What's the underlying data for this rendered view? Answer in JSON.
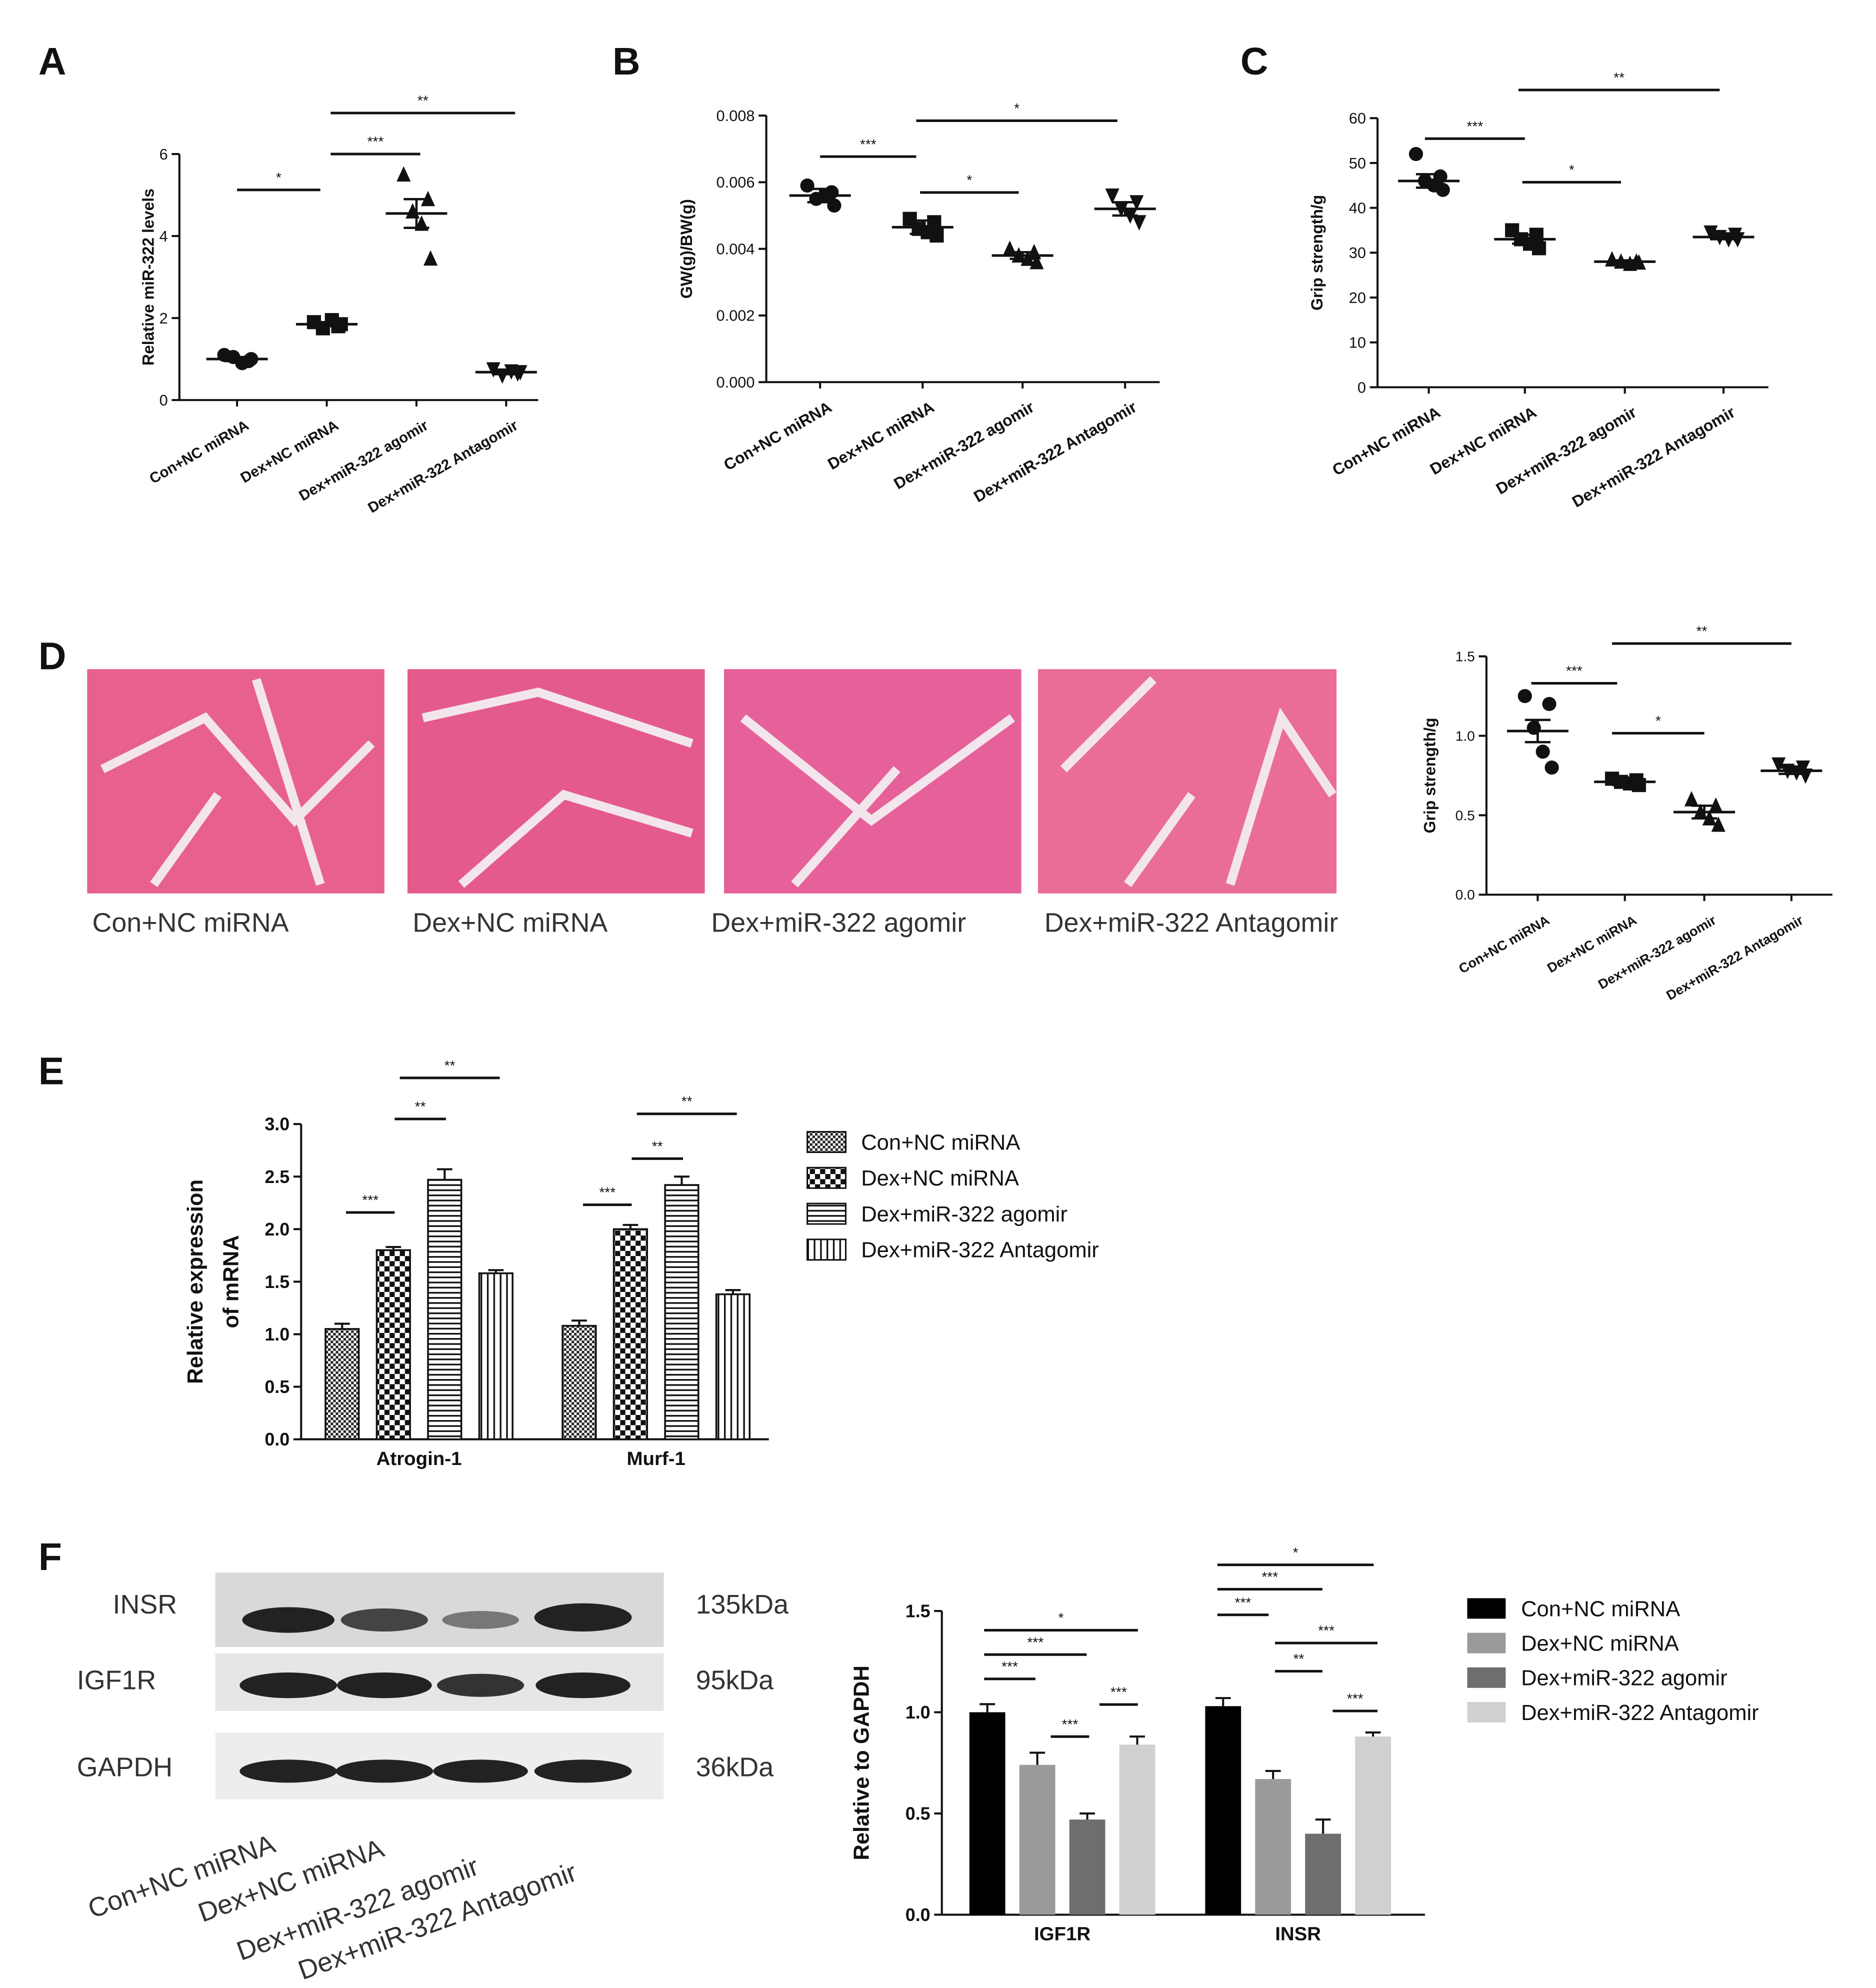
{
  "panel_labels": [
    "A",
    "B",
    "C",
    "D",
    "E",
    "F"
  ],
  "histology": {
    "labels": [
      "Con+NC miRNA",
      "Dex+NC miRNA",
      "Dex+miR-322 agomir",
      "Dex+miR-322 Antagomir"
    ]
  },
  "western_blot": {
    "bands": [
      {
        "label": "INSR",
        "size": "135kDa"
      },
      {
        "label": "IGF1R",
        "size": "95kDa"
      },
      {
        "label": "GAPDH",
        "size": "36kDa"
      }
    ],
    "lanes": [
      "Con+NC miRNA",
      "Dex+NC miRNA",
      "Dex+miR-322 agomir",
      "Dex+miR-322 Antagomir"
    ]
  },
  "chart_data": [
    {
      "type": "dot",
      "ylabel": "Relative miR-322 levels",
      "categories": [
        "Con+NC miRNA",
        "Dex+NC miRNA",
        "Dex+miR-322 agomir",
        "Dex+miR-322 Antagomir"
      ],
      "values": [
        1.0,
        1.85,
        4.55,
        0.68
      ],
      "errors": [
        0.05,
        0.05,
        0.35,
        0.05
      ],
      "points": [
        [
          1.1,
          0.95,
          1.05,
          0.9,
          1.0
        ],
        [
          1.9,
          1.8,
          1.75,
          1.95,
          1.85
        ],
        [
          5.5,
          4.9,
          4.6,
          4.3,
          3.45
        ],
        [
          0.75,
          0.65,
          0.6,
          0.7,
          0.68
        ]
      ],
      "ylim": [
        0,
        6
      ],
      "yticks": [
        0,
        2,
        4,
        6
      ],
      "annotations": [
        "*",
        "***",
        "**"
      ],
      "color": "#111111"
    },
    {
      "type": "dot",
      "ylabel": "GW(g)/BW(g)",
      "categories": [
        "Con+NC miRNA",
        "Dex+NC miRNA",
        "Dex+miR-322 agomir",
        "Dex+miR-322 Antagomir"
      ],
      "values": [
        0.0056,
        0.00465,
        0.0038,
        0.0052
      ],
      "errors": [
        0.0002,
        0.0002,
        0.0001,
        0.0002
      ],
      "points": [
        [
          0.0059,
          0.0057,
          0.0055,
          0.0056,
          0.0053
        ],
        [
          0.0049,
          0.0048,
          0.0046,
          0.0045,
          0.0044
        ],
        [
          0.004,
          0.0039,
          0.0038,
          0.0037,
          0.0036
        ],
        [
          0.0056,
          0.0054,
          0.0052,
          0.005,
          0.0048
        ]
      ],
      "ylim": [
        0,
        0.008
      ],
      "yticks": [
        {
          "value": 0,
          "label": "0.000"
        },
        {
          "value": 0.002,
          "label": "0.002"
        },
        {
          "value": 0.004,
          "label": "0.004"
        },
        {
          "value": 0.006,
          "label": "0.006"
        },
        {
          "value": 0.008,
          "label": "0.008"
        }
      ],
      "annotations": [
        "***",
        "*",
        "*"
      ],
      "color": "#111111"
    },
    {
      "type": "dot",
      "ylabel": "Grip strength/g",
      "categories": [
        "Con+NC miRNA",
        "Dex+NC miRNA",
        "Dex+miR-322 agomir",
        "Dex+miR-322 Antagomir"
      ],
      "values": [
        46,
        33,
        28,
        33.5
      ],
      "errors": [
        1.5,
        1,
        0.3,
        0.5
      ],
      "points": [
        [
          52,
          47,
          46,
          45,
          44
        ],
        [
          35,
          34,
          33,
          32,
          31
        ],
        [
          28.5,
          28,
          28,
          27.5,
          27.8
        ],
        [
          34.5,
          34,
          33.5,
          33,
          33
        ]
      ],
      "ylim": [
        0,
        60
      ],
      "yticks": [
        0,
        10,
        20,
        30,
        40,
        50,
        60
      ],
      "annotations": [
        "***",
        "*",
        "**"
      ],
      "color": "#111111"
    },
    {
      "type": "dot",
      "ylabel": "Grip strength/g",
      "categories": [
        "Con+NC miRNA",
        "Dex+NC miRNA",
        "Dex+miR-322 agomir",
        "Dex+miR-322 Antagomir"
      ],
      "values": [
        1.03,
        0.71,
        0.52,
        0.78
      ],
      "errors": [
        0.07,
        0.02,
        0.04,
        0.02
      ],
      "points": [
        [
          1.25,
          1.2,
          1.05,
          0.9,
          0.8
        ],
        [
          0.73,
          0.72,
          0.71,
          0.7,
          0.69
        ],
        [
          0.6,
          0.56,
          0.52,
          0.48,
          0.44
        ],
        [
          0.82,
          0.8,
          0.78,
          0.77,
          0.75
        ]
      ],
      "ylim": [
        0,
        1.5
      ],
      "yticks": [
        {
          "value": 0,
          "label": "0.0"
        },
        {
          "value": 0.5,
          "label": "0.5"
        },
        {
          "value": 1,
          "label": "1.0"
        },
        {
          "value": 1.5,
          "label": "1.5"
        }
      ],
      "annotations": [
        "***",
        "*",
        "**"
      ],
      "color": "#111111"
    },
    {
      "type": "bar",
      "ylabel": [
        "Relative expression",
        "of mRNA"
      ],
      "categories": [
        "Atrogin-1",
        "Murf-1"
      ],
      "series": [
        {
          "name": "Con+NC miRNA",
          "pattern": "fine-check",
          "values": [
            1.05,
            1.08
          ],
          "errors": [
            0.05,
            0.05
          ]
        },
        {
          "name": "Dex+NC miRNA",
          "pattern": "check",
          "values": [
            1.8,
            2.0
          ],
          "errors": [
            0.03,
            0.04
          ]
        },
        {
          "name": "Dex+miR-322 agomir",
          "pattern": "hlines",
          "values": [
            2.47,
            2.42
          ],
          "errors": [
            0.1,
            0.08
          ]
        },
        {
          "name": "Dex+miR-322 Antagomir",
          "pattern": "vlines",
          "values": [
            1.58,
            1.38
          ],
          "errors": [
            0.03,
            0.04
          ]
        }
      ],
      "ylim": [
        0,
        3
      ],
      "yticks": [
        {
          "value": 0,
          "label": "0.0"
        },
        {
          "value": 0.5,
          "label": "0.5"
        },
        {
          "value": 1,
          "label": "1.0"
        },
        {
          "value": 1.5,
          "label": "1.5"
        },
        {
          "value": 2,
          "label": "2.0"
        },
        {
          "value": 2.5,
          "label": "2.5"
        },
        {
          "value": 3,
          "label": "3.0"
        }
      ],
      "annotations": [
        "***",
        "**",
        "**",
        "***",
        "**",
        "**"
      ]
    },
    {
      "type": "bar",
      "ylabel": "Relative to GAPDH",
      "categories": [
        "IGF1R",
        "INSR"
      ],
      "series": [
        {
          "name": "Con+NC miRNA",
          "color": "#000000",
          "values": [
            1.0,
            1.03
          ],
          "errors": [
            0.04,
            0.04
          ]
        },
        {
          "name": "Dex+NC miRNA",
          "color": "#9a9a9a",
          "values": [
            0.74,
            0.67
          ],
          "errors": [
            0.06,
            0.04
          ]
        },
        {
          "name": "Dex+miR-322 agomir",
          "color": "#6e6e6e",
          "values": [
            0.47,
            0.4
          ],
          "errors": [
            0.03,
            0.07
          ]
        },
        {
          "name": "Dex+miR-322 Antagomir",
          "color": "#d0d0d0",
          "values": [
            0.84,
            0.88
          ],
          "errors": [
            0.04,
            0.02
          ]
        }
      ],
      "ylim": [
        0,
        1.5
      ],
      "yticks": [
        {
          "value": 0,
          "label": "0.0"
        },
        {
          "value": 0.5,
          "label": "0.5"
        },
        {
          "value": 1,
          "label": "1.0"
        },
        {
          "value": 1.5,
          "label": "1.5"
        }
      ],
      "annotations": [
        "*",
        "***",
        "***",
        "***",
        "***",
        "*",
        "***",
        "***",
        "***",
        "**",
        "***"
      ]
    }
  ]
}
